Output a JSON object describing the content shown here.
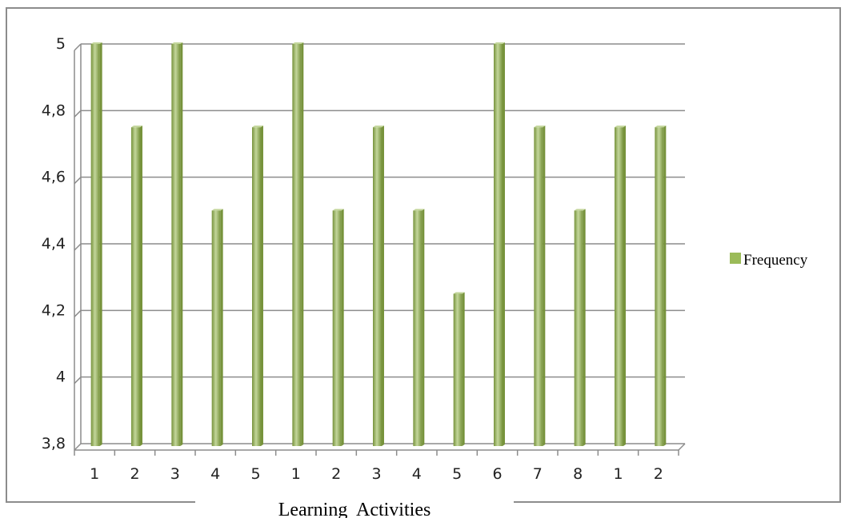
{
  "chart_data": {
    "type": "bar",
    "categories": [
      "1",
      "2",
      "3",
      "4",
      "5",
      "1",
      "2",
      "3",
      "4",
      "5",
      "6",
      "7",
      "8",
      "1",
      "2"
    ],
    "series": [
      {
        "name": "Frequency",
        "values": [
          5,
          4.75,
          5,
          4.5,
          4.75,
          5,
          4.5,
          4.75,
          4.5,
          4.25,
          5,
          4.75,
          4.5,
          4.75,
          4.75
        ]
      }
    ],
    "xlabel": "Learning  Activities",
    "ylabel": "",
    "ylim": [
      3.8,
      5
    ],
    "yticks": [
      "3,8",
      "4",
      "4,2",
      "4,4",
      "4,6",
      "4,8",
      "5"
    ],
    "grid": true,
    "legend_position": "right",
    "colors": {
      "bar": "#9bbb59",
      "bar_dark": "#77933c",
      "bar_light": "#c3d69b",
      "grid": "#8c8c8c",
      "frame": "#8c8c8c"
    }
  }
}
